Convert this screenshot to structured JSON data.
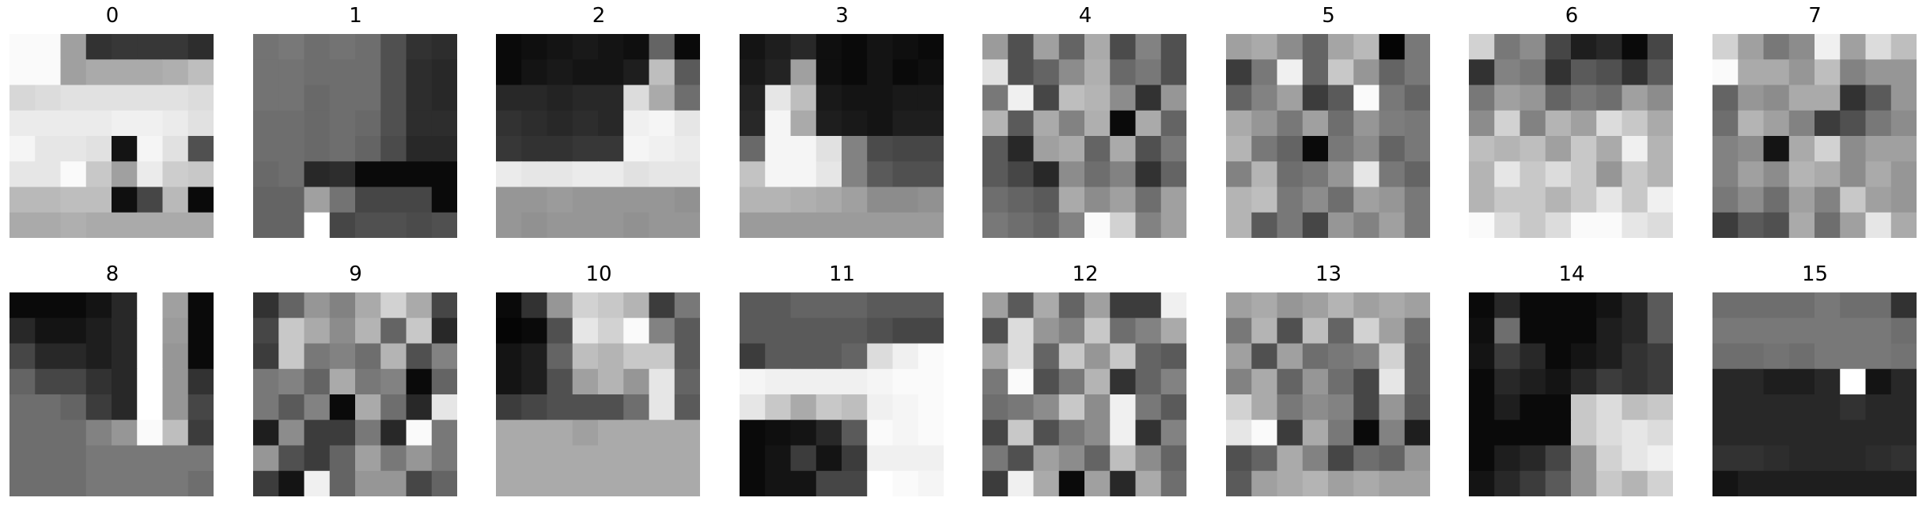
{
  "grid_size": 8,
  "panels": [
    {
      "label": "0",
      "pixels": [
        [
          250,
          250,
          160,
          50,
          55,
          55,
          55,
          45
        ],
        [
          250,
          250,
          160,
          170,
          170,
          170,
          175,
          190
        ],
        [
          215,
          220,
          225,
          225,
          225,
          225,
          225,
          220
        ],
        [
          235,
          235,
          235,
          235,
          240,
          240,
          235,
          225
        ],
        [
          245,
          230,
          230,
          225,
          20,
          245,
          225,
          80
        ],
        [
          230,
          230,
          250,
          200,
          160,
          235,
          205,
          200
        ],
        [
          185,
          185,
          190,
          190,
          15,
          70,
          185,
          10
        ],
        [
          170,
          170,
          175,
          170,
          170,
          170,
          170,
          170
        ]
      ]
    },
    {
      "label": "1",
      "pixels": [
        [
          115,
          120,
          110,
          115,
          110,
          80,
          50,
          45
        ],
        [
          115,
          115,
          110,
          110,
          110,
          80,
          45,
          40
        ],
        [
          115,
          115,
          105,
          110,
          110,
          80,
          45,
          40
        ],
        [
          110,
          110,
          105,
          110,
          105,
          80,
          45,
          45
        ],
        [
          110,
          110,
          105,
          110,
          100,
          75,
          40,
          40
        ],
        [
          105,
          110,
          40,
          45,
          10,
          10,
          10,
          10
        ],
        [
          100,
          100,
          160,
          115,
          70,
          70,
          70,
          10
        ],
        [
          100,
          100,
          255,
          70,
          80,
          80,
          75,
          80
        ]
      ]
    },
    {
      "label": "2",
      "pixels": [
        [
          10,
          15,
          20,
          25,
          20,
          15,
          100,
          10
        ],
        [
          10,
          20,
          25,
          20,
          20,
          30,
          190,
          90
        ],
        [
          40,
          40,
          35,
          40,
          40,
          220,
          170,
          110
        ],
        [
          50,
          45,
          40,
          45,
          40,
          240,
          245,
          230
        ],
        [
          55,
          50,
          50,
          55,
          55,
          245,
          240,
          235
        ],
        [
          235,
          230,
          230,
          235,
          235,
          225,
          230,
          230
        ],
        [
          150,
          150,
          155,
          150,
          150,
          150,
          150,
          145
        ],
        [
          150,
          145,
          150,
          150,
          150,
          145,
          150,
          150
        ]
      ]
    },
    {
      "label": "3",
      "pixels": [
        [
          20,
          30,
          40,
          15,
          10,
          20,
          15,
          10
        ],
        [
          25,
          35,
          160,
          15,
          10,
          20,
          10,
          15
        ],
        [
          35,
          230,
          190,
          25,
          20,
          20,
          25,
          25
        ],
        [
          40,
          245,
          170,
          30,
          25,
          20,
          30,
          30
        ],
        [
          105,
          245,
          245,
          225,
          130,
          75,
          70,
          70
        ],
        [
          195,
          245,
          245,
          230,
          130,
          90,
          80,
          80
        ],
        [
          180,
          180,
          175,
          170,
          160,
          140,
          140,
          145
        ],
        [
          155,
          155,
          155,
          155,
          155,
          155,
          155,
          155
        ]
      ]
    },
    {
      "label": "4",
      "pixels": [
        [
          155,
          80,
          160,
          100,
          170,
          75,
          130,
          80
        ],
        [
          225,
          80,
          100,
          140,
          175,
          105,
          120,
          80
        ],
        [
          120,
          240,
          70,
          190,
          180,
          140,
          50,
          150
        ],
        [
          180,
          90,
          170,
          130,
          175,
          10,
          170,
          100
        ],
        [
          90,
          40,
          160,
          170,
          100,
          170,
          80,
          120
        ],
        [
          90,
          70,
          40,
          140,
          110,
          130,
          50,
          100
        ],
        [
          110,
          100,
          90,
          170,
          140,
          160,
          110,
          160
        ],
        [
          120,
          110,
          100,
          130,
          250,
          210,
          130,
          160
        ]
      ]
    },
    {
      "label": "5",
      "pixels": [
        [
          160,
          170,
          140,
          100,
          165,
          185,
          5,
          120
        ],
        [
          60,
          120,
          240,
          100,
          200,
          150,
          100,
          120
        ],
        [
          100,
          130,
          160,
          60,
          90,
          250,
          120,
          100
        ],
        [
          170,
          150,
          120,
          160,
          110,
          150,
          125,
          120
        ],
        [
          180,
          120,
          100,
          10,
          120,
          140,
          100,
          120
        ],
        [
          130,
          180,
          110,
          120,
          150,
          230,
          120,
          100
        ],
        [
          180,
          190,
          120,
          140,
          110,
          160,
          150,
          120
        ],
        [
          180,
          90,
          120,
          70,
          150,
          130,
          160,
          120
        ]
      ]
    },
    {
      "label": "6",
      "pixels": [
        [
          210,
          120,
          140,
          70,
          30,
          40,
          10,
          70
        ],
        [
          50,
          130,
          120,
          50,
          90,
          80,
          50,
          90
        ],
        [
          120,
          160,
          150,
          100,
          120,
          110,
          160,
          140
        ],
        [
          140,
          210,
          130,
          180,
          160,
          220,
          200,
          170
        ],
        [
          190,
          180,
          190,
          160,
          200,
          170,
          240,
          180
        ],
        [
          180,
          230,
          200,
          220,
          200,
          150,
          200,
          180
        ],
        [
          180,
          200,
          200,
          180,
          200,
          230,
          200,
          240
        ],
        [
          250,
          220,
          200,
          220,
          250,
          250,
          230,
          220
        ]
      ]
    },
    {
      "label": "7",
      "pixels": [
        [
          210,
          160,
          120,
          140,
          240,
          160,
          220,
          190
        ],
        [
          250,
          170,
          170,
          150,
          190,
          130,
          150,
          150
        ],
        [
          100,
          150,
          140,
          170,
          170,
          50,
          90,
          150
        ],
        [
          110,
          180,
          160,
          130,
          60,
          80,
          120,
          140
        ],
        [
          130,
          140,
          20,
          170,
          210,
          140,
          160,
          160
        ],
        [
          130,
          160,
          140,
          180,
          170,
          140,
          170,
          150
        ],
        [
          120,
          140,
          110,
          160,
          130,
          200,
          160,
          150
        ],
        [
          60,
          90,
          80,
          170,
          110,
          160,
          230,
          170
        ]
      ]
    },
    {
      "label": "8",
      "pixels": [
        [
          10,
          10,
          10,
          20,
          40,
          255,
          160,
          10
        ],
        [
          40,
          20,
          20,
          30,
          40,
          255,
          155,
          10
        ],
        [
          70,
          40,
          40,
          30,
          40,
          255,
          150,
          10
        ],
        [
          100,
          70,
          70,
          50,
          40,
          255,
          150,
          50
        ],
        [
          110,
          110,
          100,
          60,
          40,
          255,
          150,
          70
        ],
        [
          110,
          110,
          110,
          130,
          150,
          250,
          190,
          60
        ],
        [
          110,
          110,
          110,
          120,
          120,
          120,
          120,
          120
        ],
        [
          110,
          110,
          110,
          120,
          120,
          120,
          120,
          110
        ]
      ]
    },
    {
      "label": "9",
      "pixels": [
        [
          50,
          100,
          150,
          130,
          170,
          210,
          170,
          70
        ],
        [
          70,
          200,
          170,
          140,
          180,
          100,
          200,
          40
        ],
        [
          60,
          200,
          120,
          130,
          110,
          180,
          80,
          130
        ],
        [
          120,
          130,
          100,
          170,
          120,
          130,
          10,
          100
        ],
        [
          120,
          90,
          130,
          10,
          170,
          110,
          40,
          230
        ],
        [
          30,
          140,
          60,
          60,
          120,
          40,
          250,
          120
        ],
        [
          150,
          80,
          60,
          100,
          160,
          120,
          150,
          120
        ],
        [
          60,
          20,
          240,
          100,
          150,
          150,
          70,
          100
        ]
      ]
    },
    {
      "label": "10",
      "pixels": [
        [
          10,
          50,
          150,
          210,
          200,
          180,
          60,
          120
        ],
        [
          5,
          10,
          80,
          230,
          210,
          250,
          130,
          90
        ],
        [
          20,
          30,
          100,
          190,
          180,
          200,
          200,
          90
        ],
        [
          20,
          30,
          80,
          160,
          180,
          150,
          230,
          100
        ],
        [
          60,
          70,
          80,
          80,
          80,
          110,
          230,
          90
        ],
        [
          170,
          170,
          170,
          160,
          170,
          170,
          170,
          170
        ],
        [
          170,
          170,
          170,
          170,
          170,
          170,
          170,
          170
        ],
        [
          170,
          170,
          170,
          170,
          170,
          170,
          170,
          170
        ]
      ]
    },
    {
      "label": "11",
      "pixels": [
        [
          90,
          90,
          100,
          100,
          100,
          90,
          90,
          90
        ],
        [
          90,
          90,
          90,
          90,
          90,
          80,
          70,
          70
        ],
        [
          60,
          90,
          90,
          90,
          100,
          220,
          240,
          250
        ],
        [
          245,
          240,
          240,
          240,
          240,
          245,
          250,
          250
        ],
        [
          230,
          200,
          170,
          200,
          190,
          240,
          245,
          250
        ],
        [
          10,
          15,
          20,
          40,
          90,
          250,
          245,
          250
        ],
        [
          10,
          20,
          60,
          20,
          60,
          240,
          240,
          240
        ],
        [
          10,
          20,
          20,
          70,
          70,
          255,
          250,
          245
        ]
      ]
    },
    {
      "label": "12",
      "pixels": [
        [
          160,
          90,
          170,
          100,
          160,
          60,
          60,
          240
        ],
        [
          80,
          220,
          150,
          130,
          200,
          110,
          130,
          170
        ],
        [
          170,
          220,
          100,
          200,
          150,
          200,
          100,
          90
        ],
        [
          120,
          250,
          80,
          120,
          180,
          50,
          100,
          130
        ],
        [
          110,
          120,
          140,
          200,
          140,
          240,
          120,
          90
        ],
        [
          70,
          200,
          80,
          120,
          140,
          240,
          50,
          130
        ],
        [
          120,
          80,
          160,
          140,
          100,
          190,
          140,
          100
        ],
        [
          60,
          240,
          170,
          10,
          160,
          40,
          170,
          110
        ]
      ]
    },
    {
      "label": "13",
      "pixels": [
        [
          160,
          170,
          150,
          160,
          180,
          160,
          170,
          160
        ],
        [
          120,
          180,
          80,
          190,
          100,
          210,
          160,
          110
        ],
        [
          160,
          80,
          160,
          110,
          120,
          130,
          210,
          100
        ],
        [
          130,
          170,
          100,
          150,
          110,
          70,
          230,
          100
        ],
        [
          210,
          170,
          120,
          140,
          130,
          70,
          150,
          90
        ],
        [
          230,
          250,
          60,
          170,
          120,
          10,
          130,
          30
        ],
        [
          80,
          100,
          170,
          130,
          70,
          110,
          100,
          150
        ],
        [
          90,
          160,
          170,
          180,
          160,
          170,
          160,
          160
        ]
      ]
    },
    {
      "label": "14",
      "pixels": [
        [
          10,
          40,
          10,
          10,
          10,
          20,
          40,
          90
        ],
        [
          15,
          110,
          10,
          10,
          10,
          30,
          40,
          90
        ],
        [
          20,
          60,
          40,
          10,
          20,
          30,
          50,
          60
        ],
        [
          10,
          40,
          30,
          20,
          40,
          60,
          50,
          60
        ],
        [
          10,
          30,
          10,
          10,
          200,
          220,
          190,
          200
        ],
        [
          10,
          10,
          10,
          10,
          200,
          220,
          230,
          220
        ],
        [
          10,
          30,
          40,
          70,
          150,
          210,
          230,
          240
        ],
        [
          20,
          40,
          60,
          90,
          150,
          200,
          180,
          210
        ]
      ]
    },
    {
      "label": "15",
      "pixels": [
        [
          110,
          110,
          110,
          110,
          120,
          110,
          110,
          50
        ],
        [
          120,
          120,
          120,
          120,
          120,
          120,
          120,
          110
        ],
        [
          110,
          110,
          115,
          110,
          120,
          120,
          120,
          115
        ],
        [
          40,
          40,
          30,
          30,
          40,
          255,
          20,
          40
        ],
        [
          40,
          40,
          40,
          40,
          40,
          50,
          40,
          40
        ],
        [
          40,
          40,
          40,
          40,
          40,
          40,
          40,
          40
        ],
        [
          50,
          50,
          45,
          40,
          40,
          40,
          45,
          50
        ],
        [
          20,
          30,
          30,
          30,
          30,
          30,
          30,
          30
        ]
      ]
    }
  ]
}
